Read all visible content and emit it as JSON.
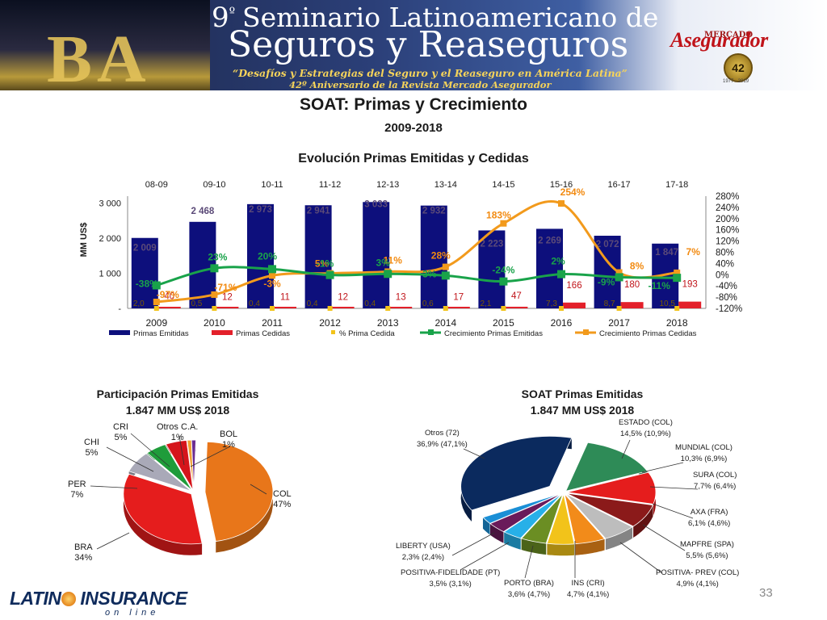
{
  "banner": {
    "number": "9",
    "number_sup": "º",
    "title_line1": "Seminario Latinoamericano de",
    "title_line2": "Seguros y Reaseguros",
    "tagline": "“Desafíos y Estrategias del Seguro y el Reaseguro en América Latina”",
    "anniversary": "42º Aniversario de la Revista Mercado Asegurador",
    "city_letters": "BA",
    "logo_small": "MERCADO",
    "logo_big": "Asegurador",
    "seal_number": "42",
    "seal_years": "1977 - 2019"
  },
  "slide": {
    "title": "SOAT: Primas y Crecimiento",
    "subtitle": "2009-2018",
    "page_number": "33"
  },
  "footer": {
    "logo_text": "LATINO INSURANCE",
    "logo_sub": "on line"
  },
  "colors": {
    "primas_emitidas": "#0d0f7c",
    "primas_cedidas": "#e3202a",
    "pct_cedida": "#f2c31a",
    "crec_emitidas": "#19a34a",
    "crec_cedidas": "#f29a1c"
  },
  "chart_data": [
    {
      "type": "bar",
      "title": "Evolución Primas Emitidas y Cedidas",
      "categories": [
        "2009",
        "2010",
        "2011",
        "2012",
        "2013",
        "2014",
        "2015",
        "2016",
        "2017",
        "2018"
      ],
      "top_axis_labels": [
        "08-09",
        "09-10",
        "10-11",
        "11-12",
        "12-13",
        "13-14",
        "14-15",
        "15-16",
        "16-17",
        "17-18"
      ],
      "ylabel": "MM US$",
      "ylim": [
        0,
        3200
      ],
      "yticks": [
        "-",
        "1 000",
        "2 000",
        "3 000"
      ],
      "y2lim": [
        -120,
        280
      ],
      "y2ticks": [
        "-120%",
        "-80%",
        "-40%",
        "0%",
        "40%",
        "80%",
        "120%",
        "160%",
        "200%",
        "240%",
        "280%"
      ],
      "series": [
        {
          "name": "Primas Emitidas",
          "kind": "bar",
          "values": [
            2009,
            2468,
            2973,
            2941,
            3033,
            2932,
            2223,
            2269,
            2072,
            1847
          ],
          "labels": [
            "2 009",
            "2 468",
            "2 973",
            "2 941",
            "3 033",
            "2 932",
            "2 223",
            "2 269",
            "2 072",
            "1 847"
          ]
        },
        {
          "name": "Primas Cedidas",
          "kind": "bar",
          "values": [
            40,
            12,
            11,
            12,
            13,
            17,
            47,
            166,
            180,
            193
          ],
          "labels": [
            "40",
            "12",
            "11",
            "12",
            "13",
            "17",
            "47",
            "166",
            "180",
            "193"
          ]
        },
        {
          "name": "% Prima Cedida",
          "kind": "marker",
          "values": [
            2.0,
            0.5,
            0.4,
            0.4,
            0.4,
            0.6,
            2.1,
            7.3,
            8.7,
            10.5
          ],
          "labels": [
            "2,0",
            "0,5",
            "0,4",
            "0,4",
            "0,4",
            "0,6",
            "2,1",
            "7,3",
            "8,7",
            "10,5"
          ]
        },
        {
          "name": "Crecimiento Primas Emitidas",
          "kind": "line",
          "values": [
            -38,
            23,
            20,
            -1,
            3,
            -3,
            -24,
            2,
            -9,
            -11
          ],
          "labels": [
            "-38%",
            "23%",
            "20%",
            "-1%",
            "3%",
            "-3%",
            "-24%",
            "2%",
            "-9%",
            "-11%"
          ]
        },
        {
          "name": "Crecimiento Primas Cedidas",
          "kind": "line",
          "values": [
            -97,
            -71,
            -3,
            5,
            11,
            28,
            183,
            254,
            8,
            7
          ],
          "labels": [
            "-97%",
            "-71%",
            "-3%",
            "5%",
            "11%",
            "28%",
            "183%",
            "254%",
            "8%",
            "7%"
          ]
        }
      ],
      "legend": "bottom"
    },
    {
      "type": "pie",
      "title": "Participación Primas Emitidas",
      "subtitle": "1.847 MM US$  2018",
      "slices": [
        {
          "name": "COL",
          "value": 47,
          "label": "47%",
          "color": "#e8761a"
        },
        {
          "name": "BRA",
          "value": 34,
          "label": "34%",
          "color": "#e51d1d"
        },
        {
          "name": "PER",
          "value": 7,
          "label": "7%",
          "color": "#a9a9b8"
        },
        {
          "name": "CHI",
          "value": 5,
          "label": "5%",
          "color": "#1f9c3a"
        },
        {
          "name": "CRI",
          "value": 5,
          "label": "5%",
          "color": "#d5151b"
        },
        {
          "name": "Otros C.A.",
          "value": 1,
          "label": "1%",
          "color": "#f0a030"
        },
        {
          "name": "BOL",
          "value": 1,
          "label": "1%",
          "color": "#6b2c91"
        }
      ]
    },
    {
      "type": "pie",
      "title": "SOAT Primas Emitidas",
      "subtitle": "1.847 MM US$ 2018",
      "slices": [
        {
          "name": "ESTADO (COL)",
          "label": "14,5% (10,9%)",
          "value": 14.5,
          "color": "#2e8b57"
        },
        {
          "name": "MUNDIAL (COL)",
          "label": "10,3% (6,9%)",
          "value": 10.3,
          "color": "#e51d1d"
        },
        {
          "name": "SURA (COL)",
          "label": "7,7% (6,4%)",
          "value": 7.7,
          "color": "#8b1a1a"
        },
        {
          "name": "AXA (FRA)",
          "label": "6,1% (4,6%)",
          "value": 6.1,
          "color": "#bdbdbd"
        },
        {
          "name": "MAPFRE (SPA)",
          "label": "5,5% (5,6%)",
          "value": 5.5,
          "color": "#f28b1a"
        },
        {
          "name": "POSITIVA- PREV (COL)",
          "label": "4,9% (4,1%)",
          "value": 4.9,
          "color": "#f2c31a"
        },
        {
          "name": "INS (CRI)",
          "label": "4,7% (4,1%)",
          "value": 4.7,
          "color": "#6b8e23"
        },
        {
          "name": "PORTO (BRA)",
          "label": "3,6% (4,7%)",
          "value": 3.6,
          "color": "#27b0e8"
        },
        {
          "name": "POSITIVA-FIDELIDADE (PT)",
          "label": "3,5% (3,1%)",
          "value": 3.5,
          "color": "#6a1b5a"
        },
        {
          "name": "LIBERTY (USA)",
          "label": "2,3% (2,4%)",
          "value": 2.3,
          "color": "#1a8fd6"
        },
        {
          "name": "Otros (72)",
          "label": "36,9% (47,1%)",
          "value": 36.9,
          "color": "#0b2a5e"
        }
      ]
    }
  ]
}
